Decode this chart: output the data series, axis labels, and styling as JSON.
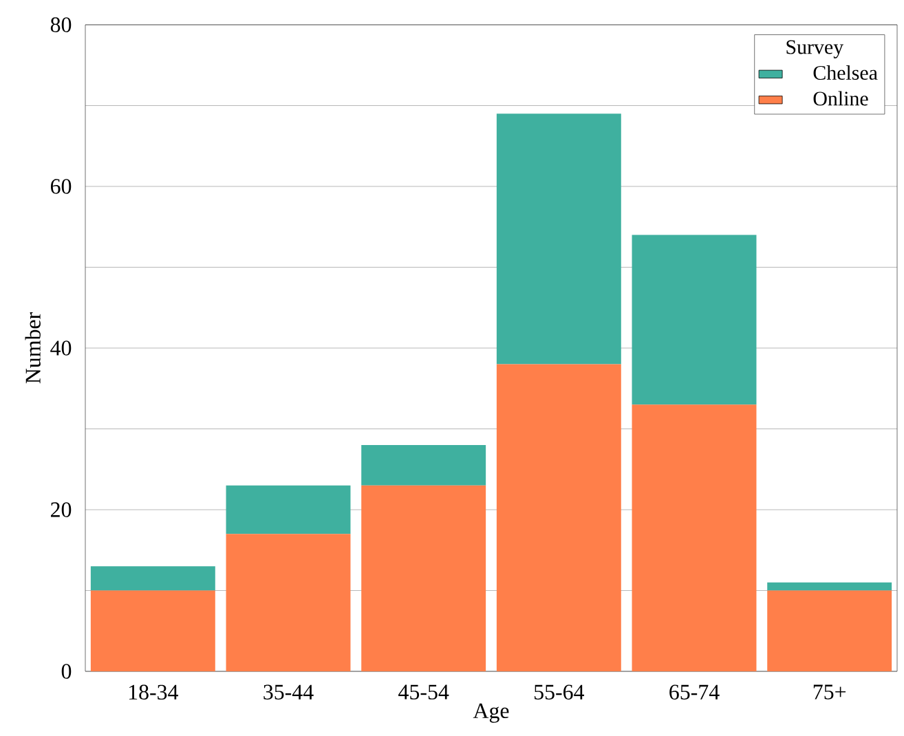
{
  "chart_data": {
    "type": "bar",
    "stacked": true,
    "categories": [
      "18-34",
      "35-44",
      "45-54",
      "55-64",
      "65-74",
      "75+"
    ],
    "series": [
      {
        "name": "Online",
        "color": "#ff7f4a",
        "values": [
          10,
          17,
          23,
          38,
          33,
          10
        ]
      },
      {
        "name": "Chelsea",
        "color": "#3fb09f",
        "values": [
          3,
          6,
          5,
          31,
          21,
          1
        ]
      }
    ],
    "xlabel": "Age",
    "ylabel": "Number",
    "legend_title": "Survey",
    "ylim": [
      0,
      80
    ],
    "yticks": [
      0,
      {
        "value": 10,
        "label": null
      },
      20,
      {
        "value": 30,
        "label": null
      },
      40,
      {
        "value": 50,
        "label": null
      },
      60,
      {
        "value": 70,
        "label": null
      },
      80
    ],
    "grid": "y",
    "legend": "top right"
  }
}
